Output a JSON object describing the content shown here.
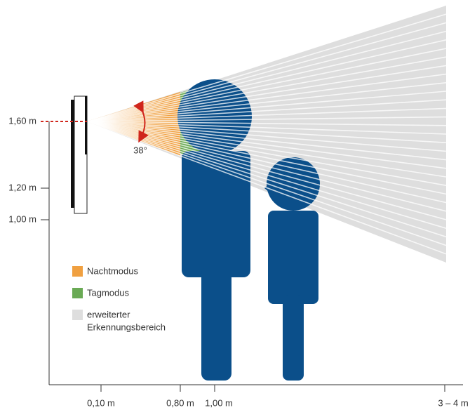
{
  "height_labels": [
    "1,60 m",
    "1,20 m",
    "1,00 m"
  ],
  "distance_labels": [
    "0,10 m",
    "0,80 m",
    "1,00 m",
    "3 – 4 m"
  ],
  "angle_label": "38°",
  "legend": [
    "Nachtmodus",
    "Tagmodus",
    "erweiterter",
    "Erkennungsbereich"
  ]
}
